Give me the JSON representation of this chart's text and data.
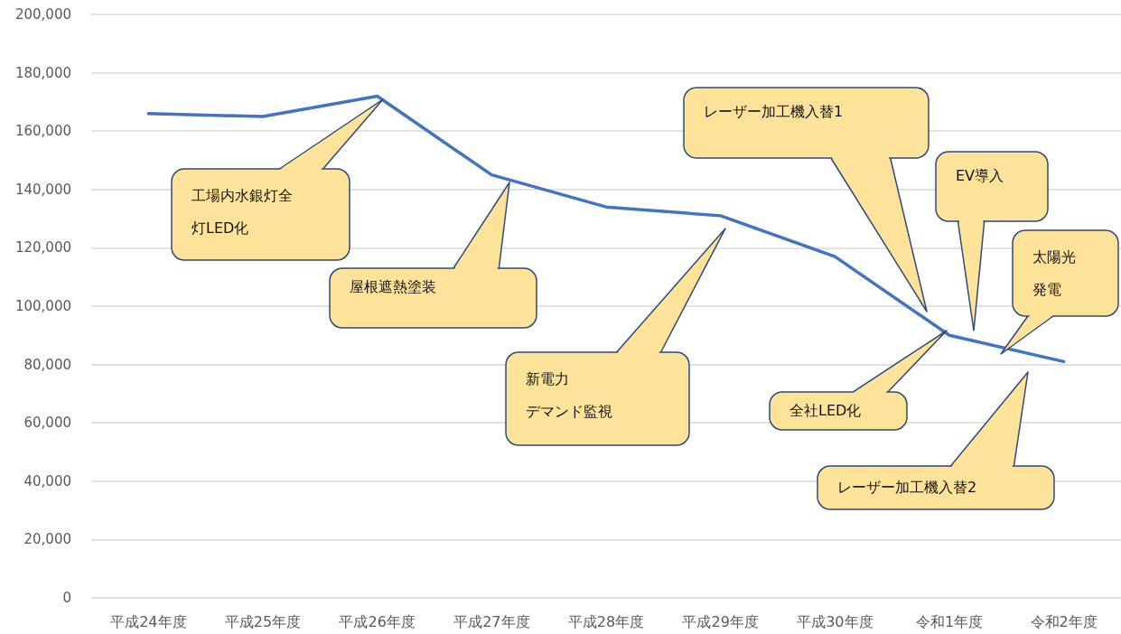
{
  "chart_data": {
    "type": "line",
    "categories": [
      "平成24年度",
      "平成25年度",
      "平成26年度",
      "平成27年度",
      "平成28年度",
      "平成29年度",
      "平成30年度",
      "令和1年度",
      "令和2年度"
    ],
    "series": [
      {
        "color": "#4472c4",
        "values": [
          166000,
          165000,
          172000,
          145000,
          134000,
          131000,
          117000,
          90000,
          81000
        ]
      }
    ],
    "ylim": [
      0,
      200000
    ],
    "yticks": [
      {
        "value": 0,
        "label": "0"
      },
      {
        "value": 20000,
        "label": "20,000"
      },
      {
        "value": 40000,
        "label": "40,000"
      },
      {
        "value": 60000,
        "label": "60,000"
      },
      {
        "value": 80000,
        "label": "80,000"
      },
      {
        "value": 100000,
        "label": "100,000"
      },
      {
        "value": 120000,
        "label": "120,000"
      },
      {
        "value": 140000,
        "label": "140,000"
      },
      {
        "value": 160000,
        "label": "160,000"
      },
      {
        "value": 180000,
        "label": "180,000"
      },
      {
        "value": 200000,
        "label": "200,000"
      }
    ],
    "grid": "y",
    "marker": "none",
    "line_style": "solid",
    "annotations": [
      "工場内水銀灯全灯LED化",
      "屋根遮熱塗装",
      "新電力デマンド監視",
      "レーザー加工機入替1",
      "EV導入",
      "太陽光発電",
      "全社LED化",
      "レーザー加工機入替2"
    ]
  }
}
